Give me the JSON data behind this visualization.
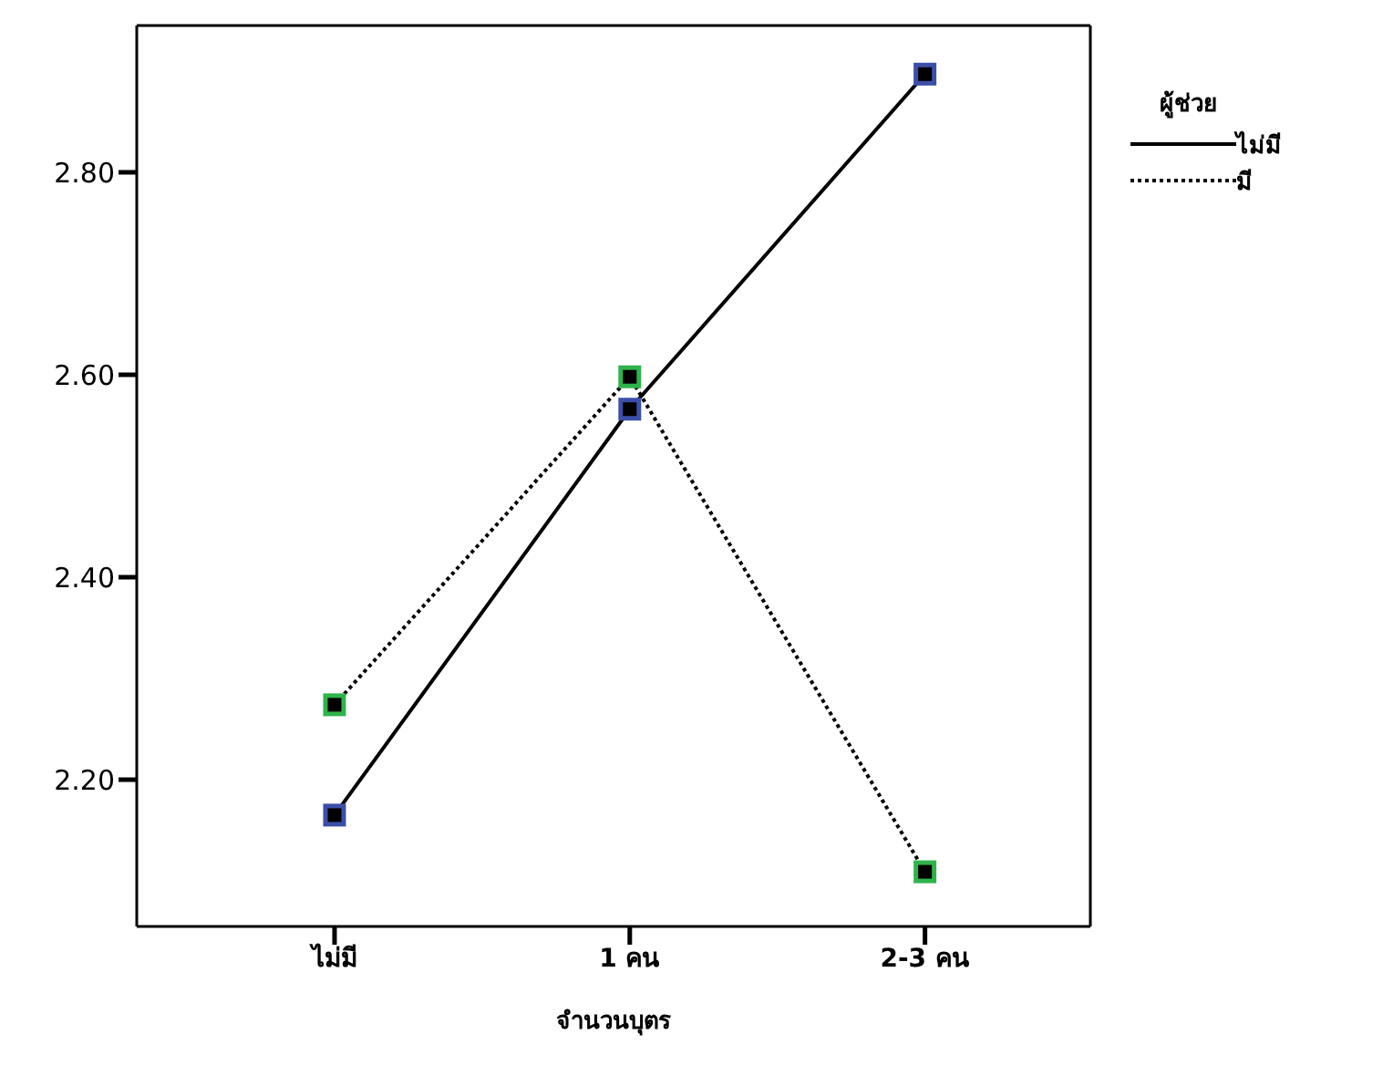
{
  "chart_data": {
    "type": "line",
    "xlabel": "จำนวนบุตร",
    "legend_title": "ผู้ช่วย",
    "legend": "top right",
    "marker": "square",
    "categories": [
      "ไม่มี",
      "1 คน",
      "2-3 คน"
    ],
    "ylim": [
      2.055,
      2.945
    ],
    "yticks": [
      {
        "value": 2.2,
        "label": "2.20"
      },
      {
        "value": 2.4,
        "label": "2.40"
      },
      {
        "value": 2.6,
        "label": "2.60"
      },
      {
        "value": 2.8,
        "label": "2.80"
      }
    ],
    "series": [
      {
        "name": "ไม่มี",
        "color": "#000000",
        "line_style": "solid",
        "values": [
          2.165,
          2.566,
          2.897
        ]
      },
      {
        "name": "มี",
        "color": "#000000",
        "line_style": "dotted",
        "values": [
          2.274,
          2.598,
          2.109
        ]
      }
    ]
  }
}
